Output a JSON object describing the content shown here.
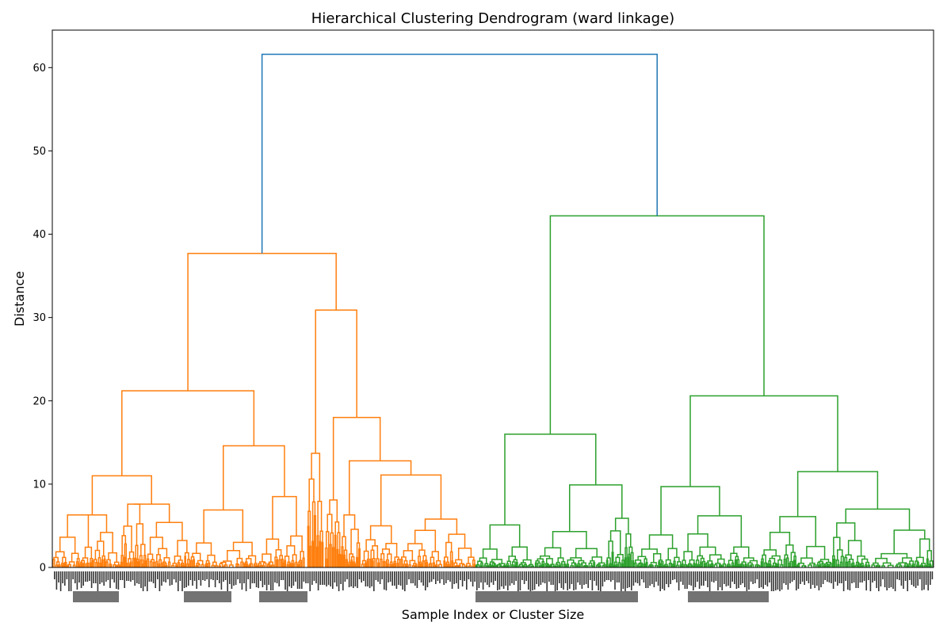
{
  "chart_data": {
    "type": "dendrogram",
    "title": "Hierarchical Clustering Dendrogram (ward linkage)",
    "xlabel": "Sample Index or Cluster Size",
    "ylabel": "Distance",
    "ylim": [
      0,
      64.5
    ],
    "yticks": [
      0,
      10,
      20,
      30,
      40,
      50,
      60
    ],
    "grid": false,
    "colors": {
      "root": "#1f77b4",
      "cluster_1": "#ff7f0e",
      "cluster_2": "#2ca02c"
    },
    "leaf_labels_note_visible": false,
    "merges": [
      {
        "name": "root",
        "height": 61.6,
        "children": [
          "cluster_1",
          "cluster_2"
        ],
        "color": "root"
      },
      {
        "name": "cluster_1",
        "height": 37.7,
        "color": "cluster_1"
      },
      {
        "name": "c1_left",
        "height": 21.2,
        "color": "cluster_1"
      },
      {
        "name": "c1_right",
        "height": 30.9,
        "color": "cluster_1"
      },
      {
        "name": "c1_ll",
        "height": 11.0,
        "color": "cluster_1"
      },
      {
        "name": "c1_lr",
        "height": 14.6,
        "color": "cluster_1"
      },
      {
        "name": "c1_rr",
        "height": 18.0,
        "color": "cluster_1"
      },
      {
        "name": "c1_rrr",
        "height": 12.8,
        "color": "cluster_1"
      },
      {
        "name": "c1_rrrr",
        "height": 11.1,
        "color": "cluster_1"
      },
      {
        "name": "c1_rl",
        "height": 13.7,
        "color": "cluster_1"
      },
      {
        "name": "cluster_2",
        "height": 42.2,
        "color": "cluster_2"
      },
      {
        "name": "c2_left",
        "height": 16.0,
        "color": "cluster_2"
      },
      {
        "name": "c2_right",
        "height": 20.6,
        "color": "cluster_2"
      },
      {
        "name": "c2_ll",
        "height": 5.1,
        "color": "cluster_2"
      },
      {
        "name": "c2_lr",
        "height": 9.9,
        "color": "cluster_2"
      },
      {
        "name": "c2_rl",
        "height": 9.7,
        "color": "cluster_2"
      },
      {
        "name": "c2_rr",
        "height": 11.5,
        "color": "cluster_2"
      }
    ]
  }
}
